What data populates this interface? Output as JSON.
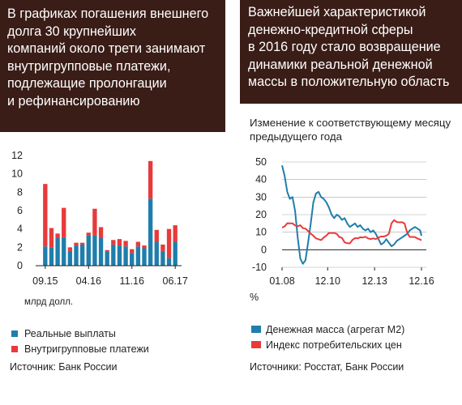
{
  "left_panel": {
    "title_lines": [
      "В графиках погашения внешнего",
      "долга 30 крупнейших",
      "компаний около трети занимают",
      "внутригрупповые платежи,",
      "подлежащие пролонгации",
      "и рефинансированию"
    ],
    "units": "млрд долл.",
    "source": "Источник: Банк России"
  },
  "right_panel": {
    "title_lines": [
      "Важнейшей характеристикой",
      "денежно-кредитной сферы",
      "в 2016 году стало возвращение",
      "динамики реальной денежной",
      "массы в положительную область"
    ],
    "subtitle_lines": [
      "Изменение к соответствующему месяцу",
      "предыдущего года"
    ],
    "unit_label": "%",
    "source": "Источники: Росстат, Банк России"
  },
  "chart_data": [
    {
      "type": "bar",
      "stacked": true,
      "categories": [
        "09.15",
        "10.15",
        "11.15",
        "12.15",
        "01.16",
        "02.16",
        "03.16",
        "04.16",
        "05.16",
        "06.16",
        "07.16",
        "08.16",
        "09.16",
        "10.16",
        "11.16",
        "12.16",
        "01.17",
        "02.17",
        "03.17",
        "04.17",
        "05.17",
        "06.17"
      ],
      "x_tick_labels": [
        "09.15",
        "04.16",
        "11.16",
        "06.17"
      ],
      "x_tick_positions": [
        "09.15",
        "04.16",
        "11.16",
        "06.17"
      ],
      "series": [
        {
          "name": "Реальные выплаты",
          "color": "#1f7eab",
          "values": [
            2.1,
            2.0,
            3.0,
            3.1,
            1.6,
            2.2,
            2.3,
            3.3,
            3.3,
            3.0,
            1.5,
            2.3,
            2.2,
            2.1,
            1.4,
            2.1,
            1.9,
            7.3,
            2.6,
            1.6,
            0.8,
            2.6
          ]
        },
        {
          "name": "Внутригрупповые платежи",
          "color": "#e83a3b",
          "values": [
            6.8,
            2.1,
            0.5,
            3.2,
            0.4,
            0.3,
            0.2,
            0.3,
            2.9,
            1.2,
            0.2,
            0.5,
            0.7,
            0.6,
            0.4,
            0.5,
            0.3,
            4.1,
            1.3,
            0.7,
            3.2,
            1.8
          ]
        }
      ],
      "ylim": [
        0,
        12
      ],
      "yticks": [
        0,
        2,
        4,
        6,
        8,
        10,
        12
      ],
      "grid": false,
      "legend": "bottom"
    },
    {
      "type": "line",
      "x_tick_labels": [
        "01.08",
        "12.10",
        "12.13",
        "12.16"
      ],
      "ylim": [
        -10,
        50
      ],
      "yticks": [
        -10,
        0,
        10,
        20,
        30,
        40,
        50
      ],
      "grid": true,
      "legend": "bottom",
      "series": [
        {
          "name": "Денежная масса (агрегат М2)",
          "color": "#1f7eab",
          "x": [
            "01.08",
            "03.08",
            "05.08",
            "07.08",
            "09.08",
            "11.08",
            "01.09",
            "03.09",
            "05.09",
            "07.09",
            "09.09",
            "11.09",
            "01.10",
            "03.10",
            "05.10",
            "07.10",
            "09.10",
            "11.10",
            "01.11",
            "03.11",
            "05.11",
            "07.11",
            "09.11",
            "11.11",
            "01.12",
            "03.12",
            "05.12",
            "07.12",
            "09.12",
            "11.12",
            "01.13",
            "03.13",
            "05.13",
            "07.13",
            "09.13",
            "11.13",
            "01.14",
            "03.14",
            "05.14",
            "07.14",
            "09.14",
            "11.14",
            "01.15",
            "03.15",
            "05.15",
            "07.15",
            "09.15",
            "11.15",
            "01.16",
            "03.16",
            "05.16",
            "07.16",
            "09.16",
            "11.16",
            "12.16"
          ],
          "y": [
            48,
            42,
            33,
            29,
            30,
            22,
            7,
            -5,
            -8,
            -6,
            4,
            15,
            27,
            32,
            33,
            30,
            29,
            27,
            24,
            20,
            18,
            20,
            19,
            17,
            18,
            15,
            13,
            14,
            15,
            13,
            14,
            12,
            11,
            12,
            10,
            11,
            9,
            6,
            3,
            4,
            6,
            4,
            2,
            3,
            5,
            6,
            7,
            8,
            9,
            11,
            12,
            13,
            12,
            11,
            8
          ]
        },
        {
          "name": "Индекс потребительских цен",
          "color": "#e83a3b",
          "x": [
            "01.08",
            "03.08",
            "05.08",
            "07.08",
            "09.08",
            "11.08",
            "01.09",
            "03.09",
            "05.09",
            "07.09",
            "09.09",
            "11.09",
            "01.10",
            "03.10",
            "05.10",
            "07.10",
            "09.10",
            "11.10",
            "01.11",
            "03.11",
            "05.11",
            "07.11",
            "09.11",
            "11.11",
            "01.12",
            "03.12",
            "05.12",
            "07.12",
            "09.12",
            "11.12",
            "01.13",
            "03.13",
            "05.13",
            "07.13",
            "09.13",
            "11.13",
            "01.14",
            "03.14",
            "05.14",
            "07.14",
            "09.14",
            "11.14",
            "01.15",
            "03.15",
            "05.15",
            "07.15",
            "09.15",
            "11.15",
            "01.16",
            "03.16",
            "05.16",
            "07.16",
            "09.16",
            "11.16",
            "12.16"
          ],
          "y": [
            12.6,
            13.3,
            15.1,
            15.0,
            15.0,
            13.8,
            13.4,
            14.0,
            12.3,
            12.0,
            10.7,
            9.1,
            8.0,
            6.5,
            6.0,
            5.5,
            7.0,
            8.1,
            9.6,
            9.5,
            9.6,
            9.0,
            7.2,
            6.8,
            4.2,
            3.7,
            3.6,
            5.6,
            6.6,
            6.5,
            7.1,
            7.0,
            7.4,
            6.5,
            6.1,
            6.5,
            6.1,
            6.9,
            7.6,
            7.5,
            8.0,
            9.1,
            15.0,
            16.9,
            15.8,
            15.6,
            15.7,
            15.0,
            9.8,
            7.3,
            7.3,
            7.2,
            6.4,
            5.8,
            5.4
          ]
        }
      ]
    }
  ]
}
